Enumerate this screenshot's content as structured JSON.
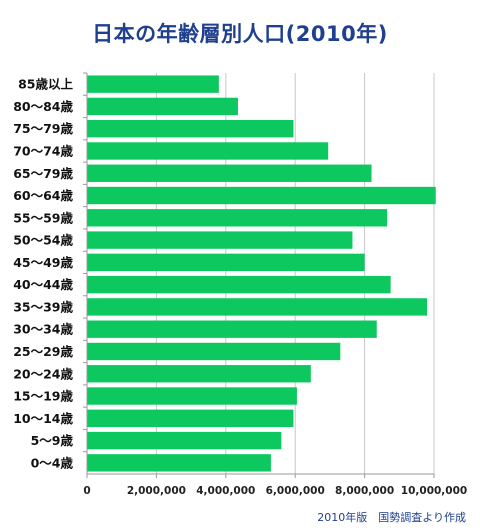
{
  "chart_data": {
    "type": "bar",
    "orientation": "horizontal",
    "title": "日本の年齢層別人口(2010年)",
    "categories": [
      "85歳以上",
      "80～84歳",
      "75～79歳",
      "70～74歳",
      "65～79歳",
      "60～64歳",
      "55～59歳",
      "50～54歳",
      "45～49歳",
      "40～44歳",
      "35～39歳",
      "30～34歳",
      "25～29歳",
      "20～24歳",
      "15～19歳",
      "10～14歳",
      "5～9歳",
      "0～4歳"
    ],
    "values": [
      3800000,
      4350000,
      5950000,
      6950000,
      8200000,
      10050000,
      8650000,
      7650000,
      8000000,
      8750000,
      9800000,
      8350000,
      7300000,
      6450000,
      6050000,
      5950000,
      5600000,
      5300000
    ],
    "x_ticks": [
      "0",
      "2,000,000",
      "4,000,000",
      "6,000,000",
      "8,000,000",
      "10,000,000"
    ],
    "xlim": [
      0,
      10000000
    ],
    "grid": true,
    "bar_color": "#0cc85f",
    "grid_color": "#c8c8c8",
    "axis_color": "#9a9a9a",
    "source_note": "2010年版　国勢調査より作成"
  }
}
